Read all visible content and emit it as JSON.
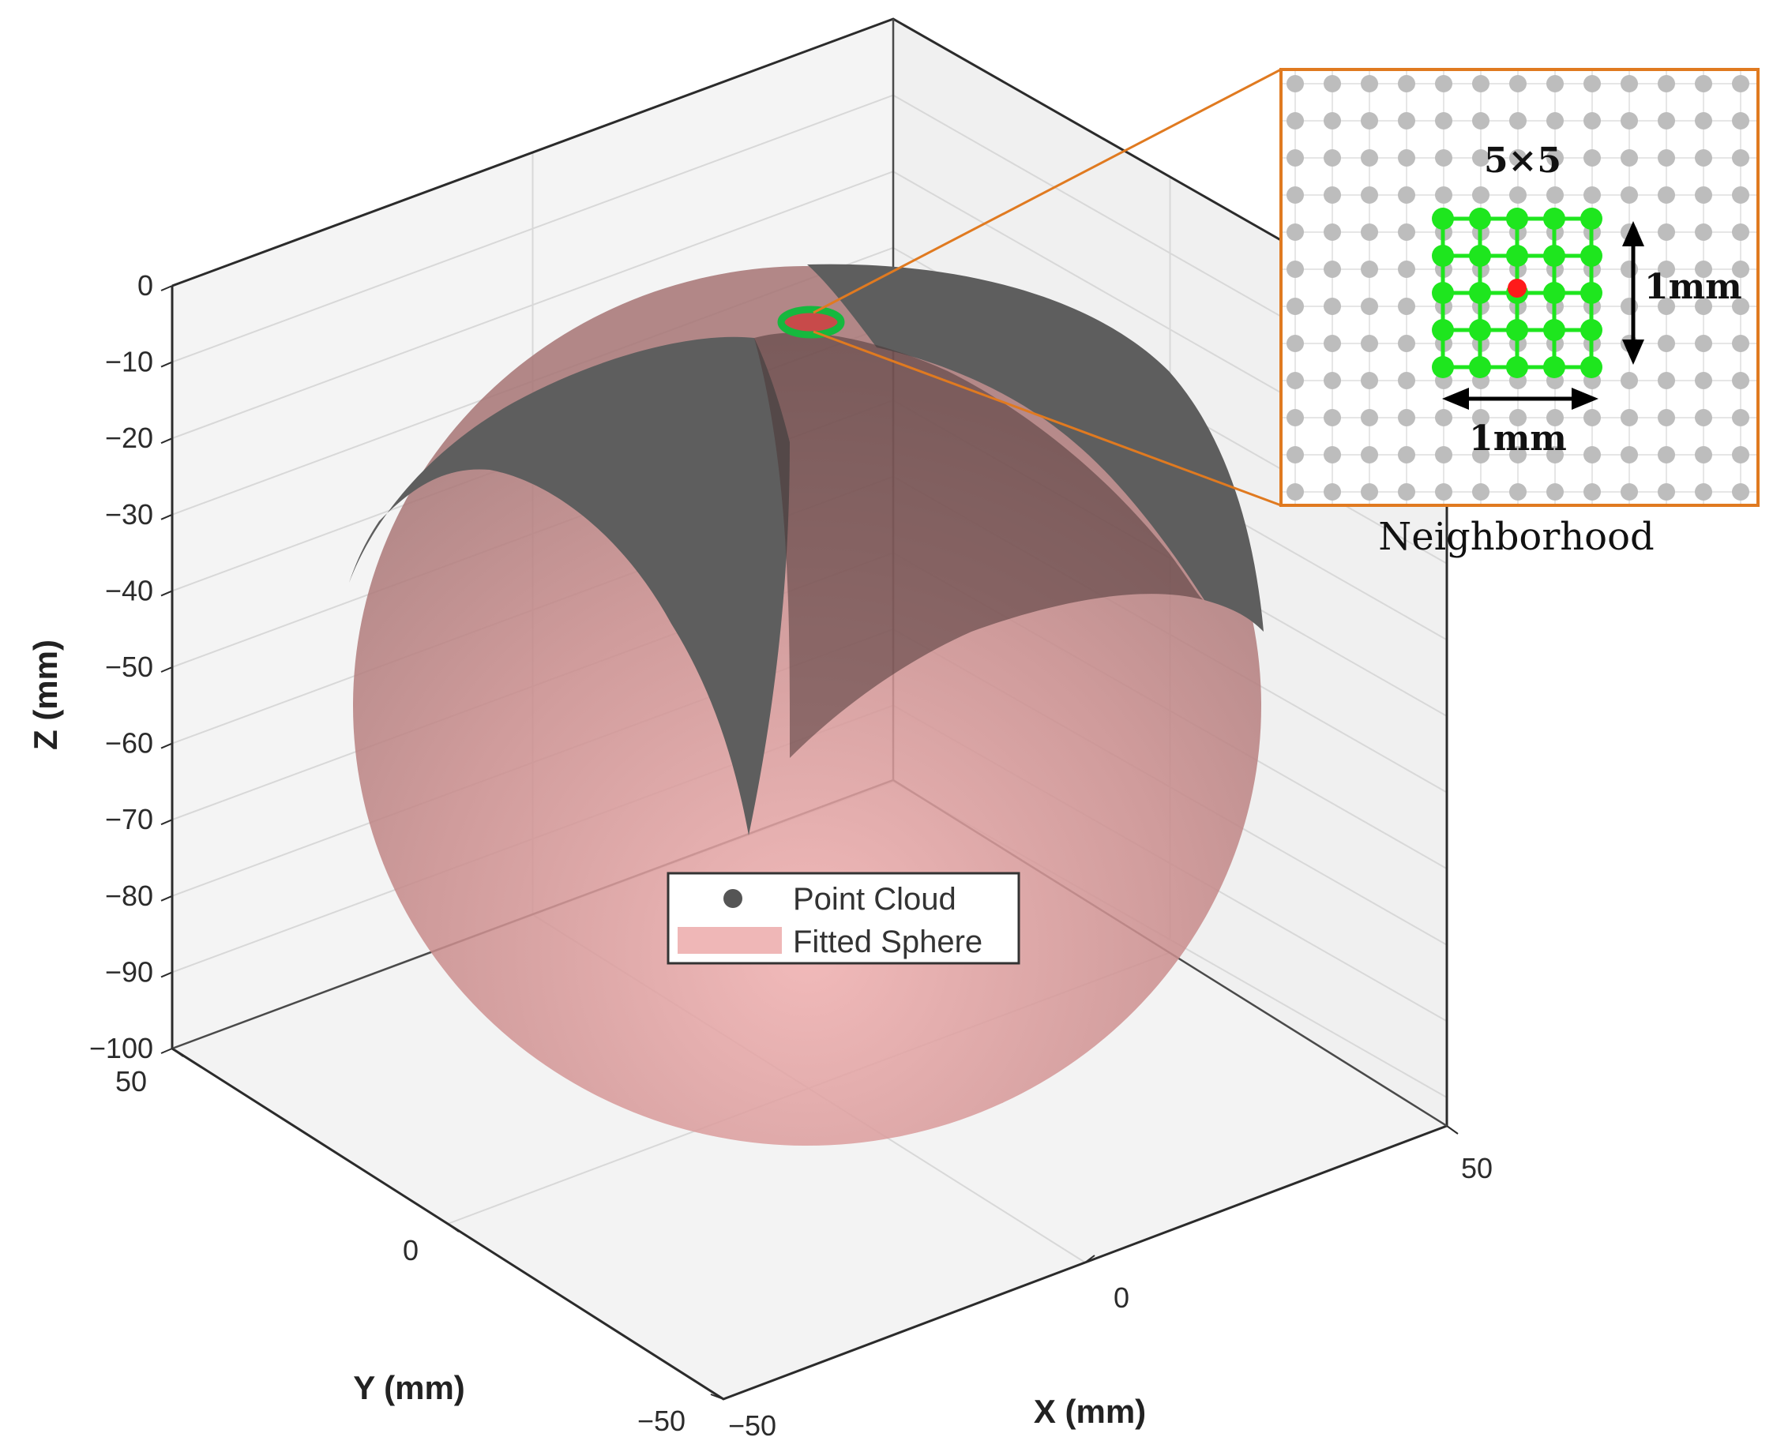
{
  "chart_data": {
    "type": "scatter",
    "subtype": "3d-surface-with-fitted-sphere",
    "xlabel": "X (mm)",
    "ylabel": "Y (mm)",
    "zlabel": "Z (mm)",
    "x_ticks": [
      "−50",
      "0",
      "50"
    ],
    "y_ticks": [
      "−50",
      "0",
      "50"
    ],
    "z_ticks": [
      "0",
      "−10",
      "−20",
      "−30",
      "−40",
      "−50",
      "−60",
      "−70",
      "−80",
      "−90",
      "−100"
    ],
    "xlim": [
      -50,
      50
    ],
    "ylim": [
      -50,
      50
    ],
    "zlim": [
      -100,
      0
    ],
    "grid": true,
    "legend_position": "center",
    "series": [
      {
        "name": "Point Cloud",
        "color": "#555555"
      },
      {
        "name": "Fitted Sphere",
        "color": "#d88f8f"
      }
    ],
    "inset": {
      "grid_label": "5×5",
      "width_label": "1mm",
      "height_label": "1mm",
      "caption": "Neighborhood",
      "point_color": "#bdbdbd",
      "neighborhood_color": "#1ee61e",
      "center_color": "#ff1a1a",
      "border_color": "#e07a20"
    }
  }
}
